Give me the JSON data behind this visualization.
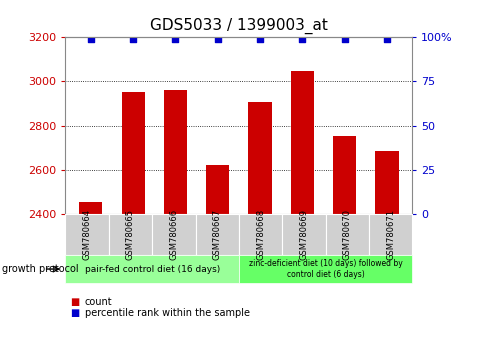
{
  "title": "GDS5033 / 1399003_at",
  "categories": [
    "GSM780664",
    "GSM780665",
    "GSM780666",
    "GSM780667",
    "GSM780668",
    "GSM780669",
    "GSM780670",
    "GSM780671"
  ],
  "bar_values": [
    2455,
    2950,
    2960,
    2620,
    2905,
    3045,
    2755,
    2685
  ],
  "percentile_values": [
    99,
    99,
    99,
    99,
    99,
    99,
    99,
    99
  ],
  "bar_color": "#cc0000",
  "percentile_color": "#0000cc",
  "ylim_left": [
    2400,
    3200
  ],
  "ylim_right": [
    0,
    100
  ],
  "yticks_left": [
    2400,
    2600,
    2800,
    3000,
    3200
  ],
  "yticks_right": [
    0,
    25,
    50,
    75,
    100
  ],
  "right_tick_labels": [
    "0",
    "25",
    "50",
    "75",
    "100%"
  ],
  "group1_label": "pair-fed control diet (16 days)",
  "group2_label": "zinc-deficient diet (10 days) followed by\ncontrol diet (6 days)",
  "group1_color": "#99ff99",
  "group2_color": "#66ff66",
  "xlabel_protocol": "growth protocol",
  "legend_count_label": "count",
  "legend_percentile_label": "percentile rank within the sample",
  "subplot_label_bg": "#d0d0d0",
  "title_fontsize": 11,
  "axis_fontsize": 8,
  "bar_color_left_axis": "#cc0000",
  "percentile_color_right_axis": "#0000cc"
}
